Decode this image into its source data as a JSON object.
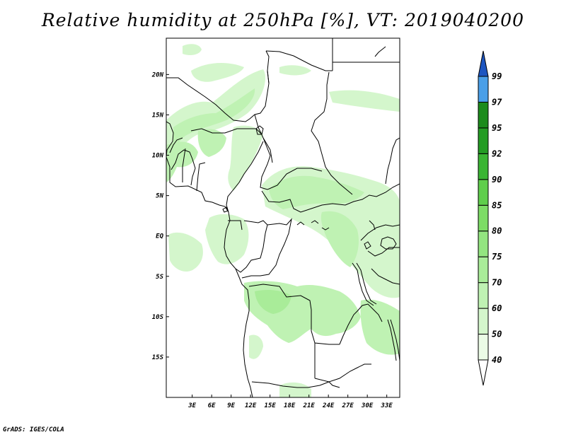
{
  "title": "Relative humidity at 250hPa [%], VT: 2019040200",
  "credit": "GrADS: IGES/COLA",
  "map": {
    "lon_range": [
      -1,
      35
    ],
    "lat_range": [
      -20,
      24.5
    ],
    "x_ticks": [
      {
        "value": 3,
        "label": "3E"
      },
      {
        "value": 6,
        "label": "6E"
      },
      {
        "value": 9,
        "label": "9E"
      },
      {
        "value": 12,
        "label": "12E"
      },
      {
        "value": 15,
        "label": "15E"
      },
      {
        "value": 18,
        "label": "18E"
      },
      {
        "value": 21,
        "label": "21E"
      },
      {
        "value": 24,
        "label": "24E"
      },
      {
        "value": 27,
        "label": "27E"
      },
      {
        "value": 30,
        "label": "30E"
      },
      {
        "value": 33,
        "label": "33E"
      }
    ],
    "y_ticks": [
      {
        "value": 20,
        "label": "20N"
      },
      {
        "value": 15,
        "label": "15N"
      },
      {
        "value": 10,
        "label": "10N"
      },
      {
        "value": 5,
        "label": "5N"
      },
      {
        "value": 0,
        "label": "EQ"
      },
      {
        "value": -5,
        "label": "5S"
      },
      {
        "value": -10,
        "label": "10S"
      },
      {
        "value": -15,
        "label": "15S"
      }
    ]
  },
  "colorbar": {
    "levels": [
      "40",
      "50",
      "60",
      "70",
      "75",
      "80",
      "85",
      "90",
      "92",
      "95",
      "97",
      "99"
    ],
    "colors": [
      "#ebfbe6",
      "#d4f6cc",
      "#bff2b3",
      "#a9ec99",
      "#93e580",
      "#7ddc66",
      "#5fce4c",
      "#3ab533",
      "#249c24",
      "#1c8b1c",
      "#4a9fe8",
      "#2b74d6",
      "#1d55c0"
    ],
    "lower_color": "#ffffff"
  }
}
